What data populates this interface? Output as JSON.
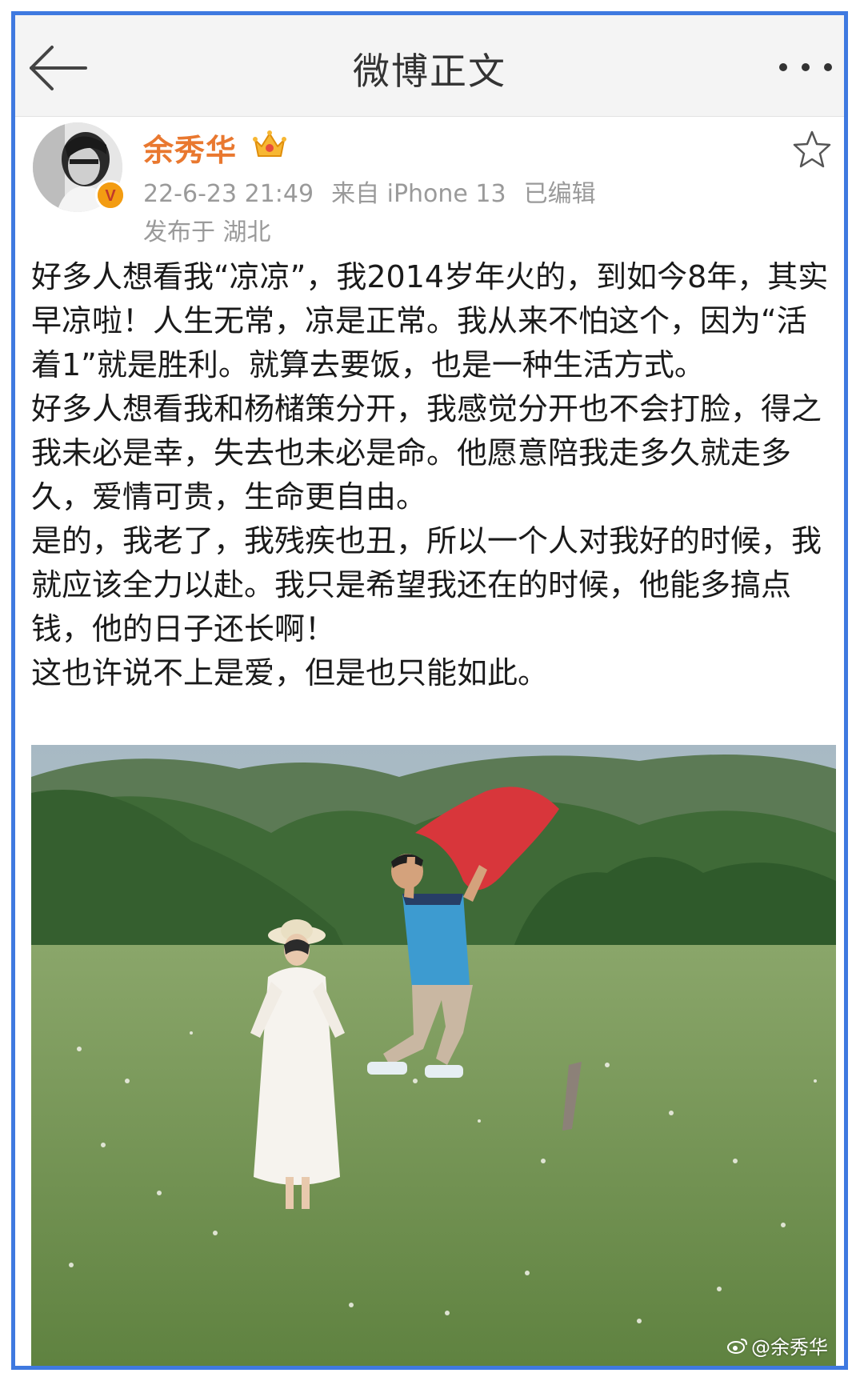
{
  "topbar": {
    "title": "微博正文",
    "back_icon": "arrow-left-icon",
    "more_icon": "more-dots-icon"
  },
  "post": {
    "author": {
      "name": "余秀华",
      "verified_badge": "v-badge-icon",
      "member_icon": "crown-icon"
    },
    "timestamp": "22-6-23 21:49",
    "source": "来自 iPhone 13",
    "edited": "已编辑",
    "location": "发布于 湖北",
    "favorite_icon": "star-outline-icon",
    "paragraphs": [
      "好多人想看我“凉凉”，我2014岁年火的，到如今8年，其实早凉啦！人生无常，凉是正常。我从来不怕这个，因为“活着1”就是胜利。就算去要饭，也是一种生活方式。",
      "好多人想看我和杨槠策分开，我感觉分开也不会打脸，得之我未必是幸，失去也未必是命。他愿意陪我走多久就走多久，爱情可贵，生命更自由。",
      "是的，我老了，我残疾也丑，所以一个人对我好的时候，我就应该全力以赴。我只是希望我还在的时候，他能多搞点钱，他的日子还长啊！",
      "这也许说不上是爱，但是也只能如此。"
    ],
    "photo": {
      "watermark": "@余秀华"
    }
  },
  "colors": {
    "frame_border": "#3f79e0",
    "username": "#e9782f",
    "meta_text": "#9a9a9a",
    "body_text": "#1a1a1a"
  }
}
